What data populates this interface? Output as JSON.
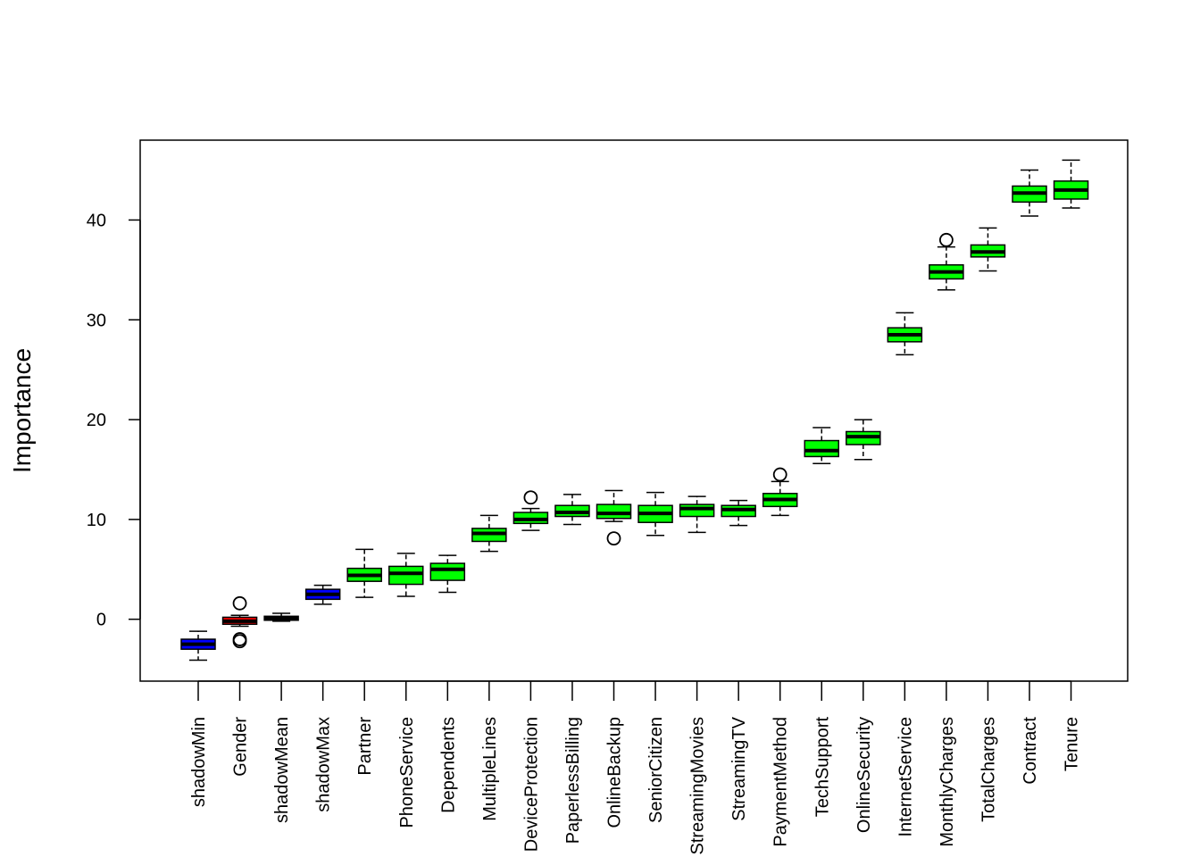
{
  "chart_data": {
    "type": "boxplot",
    "title": "",
    "xlabel": "",
    "ylabel": "Importance",
    "ylim": [
      -6.2,
      48.0
    ],
    "yticks": [
      0,
      10,
      20,
      30,
      40
    ],
    "colors": {
      "shadow": "#0000ff",
      "rejected": "#ff0000",
      "confirmed": "#00ff00"
    },
    "boxes": [
      {
        "name": "shadowMin",
        "status": "shadow",
        "whisker_low": -4.1,
        "q1": -3.0,
        "median": -2.5,
        "q3": -2.0,
        "whisker_high": -1.2,
        "outliers": []
      },
      {
        "name": "Gender",
        "status": "rejected",
        "whisker_low": -0.7,
        "q1": -0.5,
        "median": -0.2,
        "q3": 0.2,
        "whisker_high": 0.4,
        "outliers": [
          1.6,
          -2.0,
          -2.2
        ]
      },
      {
        "name": "shadowMean",
        "status": "shadow",
        "whisker_low": -0.2,
        "q1": -0.1,
        "median": 0.1,
        "q3": 0.3,
        "whisker_high": 0.6,
        "outliers": []
      },
      {
        "name": "shadowMax",
        "status": "shadow",
        "whisker_low": 1.5,
        "q1": 2.0,
        "median": 2.5,
        "q3": 3.0,
        "whisker_high": 3.4,
        "outliers": []
      },
      {
        "name": "Partner",
        "status": "confirmed",
        "whisker_low": 2.2,
        "q1": 3.8,
        "median": 4.4,
        "q3": 5.1,
        "whisker_high": 7.0,
        "outliers": []
      },
      {
        "name": "PhoneService",
        "status": "confirmed",
        "whisker_low": 2.3,
        "q1": 3.5,
        "median": 4.6,
        "q3": 5.3,
        "whisker_high": 6.6,
        "outliers": []
      },
      {
        "name": "Dependents",
        "status": "confirmed",
        "whisker_low": 2.7,
        "q1": 3.9,
        "median": 5.0,
        "q3": 5.6,
        "whisker_high": 6.4,
        "outliers": []
      },
      {
        "name": "MultipleLines",
        "status": "confirmed",
        "whisker_low": 6.8,
        "q1": 7.8,
        "median": 8.6,
        "q3": 9.1,
        "whisker_high": 10.4,
        "outliers": []
      },
      {
        "name": "DeviceProtection",
        "status": "confirmed",
        "whisker_low": 8.9,
        "q1": 9.6,
        "median": 10.0,
        "q3": 10.7,
        "whisker_high": 11.1,
        "outliers": [
          12.2
        ]
      },
      {
        "name": "PaperlessBilling",
        "status": "confirmed",
        "whisker_low": 9.5,
        "q1": 10.3,
        "median": 10.7,
        "q3": 11.4,
        "whisker_high": 12.5,
        "outliers": []
      },
      {
        "name": "OnlineBackup",
        "status": "confirmed",
        "whisker_low": 9.8,
        "q1": 10.1,
        "median": 10.6,
        "q3": 11.5,
        "whisker_high": 12.9,
        "outliers": [
          8.1
        ]
      },
      {
        "name": "SeniorCitizen",
        "status": "confirmed",
        "whisker_low": 8.4,
        "q1": 9.7,
        "median": 10.6,
        "q3": 11.4,
        "whisker_high": 12.7,
        "outliers": []
      },
      {
        "name": "StreamingMovies",
        "status": "confirmed",
        "whisker_low": 8.7,
        "q1": 10.3,
        "median": 11.1,
        "q3": 11.5,
        "whisker_high": 12.3,
        "outliers": []
      },
      {
        "name": "StreamingTV",
        "status": "confirmed",
        "whisker_low": 9.4,
        "q1": 10.3,
        "median": 11.0,
        "q3": 11.4,
        "whisker_high": 11.9,
        "outliers": []
      },
      {
        "name": "PaymentMethod",
        "status": "confirmed",
        "whisker_low": 10.4,
        "q1": 11.3,
        "median": 12.0,
        "q3": 12.6,
        "whisker_high": 13.8,
        "outliers": [
          14.5
        ]
      },
      {
        "name": "TechSupport",
        "status": "confirmed",
        "whisker_low": 15.6,
        "q1": 16.3,
        "median": 16.9,
        "q3": 17.9,
        "whisker_high": 19.2,
        "outliers": []
      },
      {
        "name": "OnlineSecurity",
        "status": "confirmed",
        "whisker_low": 16.0,
        "q1": 17.5,
        "median": 18.3,
        "q3": 18.8,
        "whisker_high": 20.0,
        "outliers": []
      },
      {
        "name": "InternetService",
        "status": "confirmed",
        "whisker_low": 26.5,
        "q1": 27.8,
        "median": 28.5,
        "q3": 29.2,
        "whisker_high": 30.7,
        "outliers": []
      },
      {
        "name": "MonthlyCharges",
        "status": "confirmed",
        "whisker_low": 33.0,
        "q1": 34.1,
        "median": 34.8,
        "q3": 35.5,
        "whisker_high": 37.3,
        "outliers": [
          38.0
        ]
      },
      {
        "name": "TotalCharges",
        "status": "confirmed",
        "whisker_low": 34.9,
        "q1": 36.3,
        "median": 36.8,
        "q3": 37.5,
        "whisker_high": 39.2,
        "outliers": []
      },
      {
        "name": "Contract",
        "status": "confirmed",
        "whisker_low": 40.4,
        "q1": 41.8,
        "median": 42.7,
        "q3": 43.4,
        "whisker_high": 45.0,
        "outliers": []
      },
      {
        "name": "Tenure",
        "status": "confirmed",
        "whisker_low": 41.2,
        "q1": 42.1,
        "median": 43.0,
        "q3": 43.9,
        "whisker_high": 46.0,
        "outliers": []
      }
    ]
  }
}
